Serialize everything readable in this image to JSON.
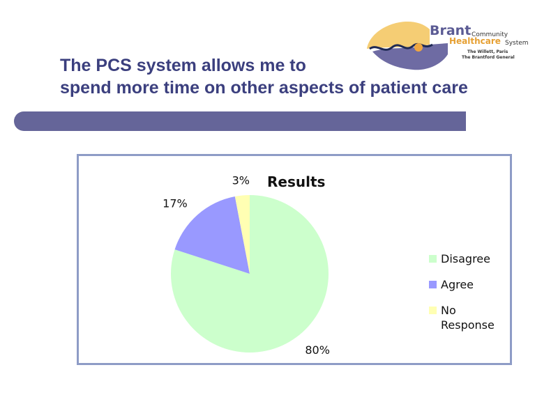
{
  "slide": {
    "title_line1": "The PCS system allows me to",
    "title_line2": "spend more time on other aspects of patient care"
  },
  "logo": {
    "brand": "Brant",
    "community": "Community",
    "healthcare": "Healthcare",
    "system": "System",
    "line1": "The Willett, Paris",
    "line2": "The Brantford General"
  },
  "colors": {
    "title": "#3b3f7e",
    "bar": "#656599",
    "disagree": "#ccffcc",
    "agree": "#9999ff",
    "no_response": "#ffffb3"
  },
  "chart_data": {
    "type": "pie",
    "title": "Results",
    "slices": [
      {
        "label": "Disagree",
        "value": 80,
        "display": "80%",
        "color": "#ccffcc"
      },
      {
        "label": "Agree",
        "value": 17,
        "display": "17%",
        "color": "#9999ff"
      },
      {
        "label": "No Response",
        "value": 3,
        "display": "3%",
        "color": "#ffffb3"
      }
    ],
    "legend_position": "right"
  }
}
